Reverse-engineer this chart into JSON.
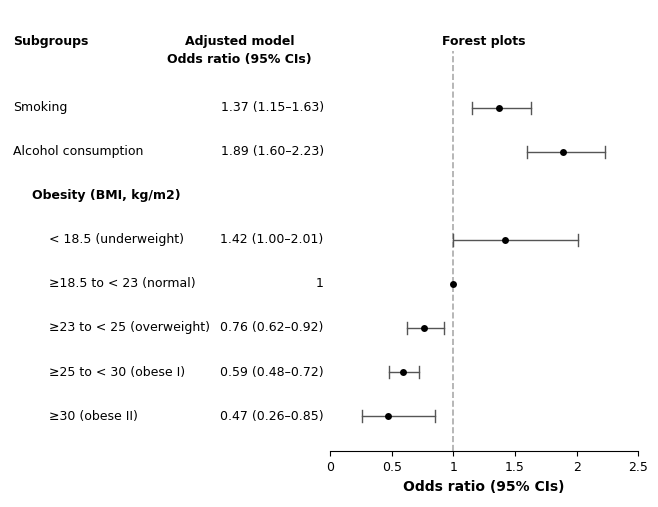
{
  "labels": [
    "Smoking",
    "Alcohol consumption",
    "Obesity (BMI, kg/m2)",
    "< 18.5 (underweight)",
    "≥18.5 to < 23 (normal)",
    "≥23 to < 25 (overweight)",
    "≥25 to < 30 (obese I)",
    "≥30 (obese II)"
  ],
  "or_labels": [
    "1.37 (1.15–1.63)",
    "1.89 (1.60–2.23)",
    "",
    "1.42 (1.00–2.01)",
    "1",
    "0.76 (0.62–0.92)",
    "0.59 (0.48–0.72)",
    "0.47 (0.26–0.85)"
  ],
  "or": [
    1.37,
    1.89,
    null,
    1.42,
    1.0,
    0.76,
    0.59,
    0.47
  ],
  "ci_low": [
    1.15,
    1.6,
    null,
    1.0,
    1.0,
    0.62,
    0.48,
    0.26
  ],
  "ci_high": [
    1.63,
    2.23,
    null,
    2.01,
    1.0,
    0.92,
    0.72,
    0.85
  ],
  "is_header": [
    false,
    false,
    true,
    false,
    false,
    false,
    false,
    false
  ],
  "is_reference": [
    false,
    false,
    false,
    false,
    true,
    false,
    false,
    false
  ],
  "indent": [
    false,
    false,
    false,
    true,
    true,
    true,
    true,
    true
  ],
  "y_positions": [
    8,
    7,
    6,
    5,
    4,
    3,
    2,
    1
  ],
  "xlim": [
    0,
    2.5
  ],
  "xticks": [
    0,
    0.5,
    1.0,
    1.5,
    2.0,
    2.5
  ],
  "xtick_labels": [
    "0",
    "0.5",
    "1",
    "1.5",
    "2",
    "2.5"
  ],
  "xlabel": "Odds ratio (95% CIs)",
  "ref_line": 1.0,
  "col_header1": "Subgroups",
  "col_header2_line1": "Adjusted model",
  "col_header2_line2": "Odds ratio (95% CIs)",
  "col_header3": "Forest plots",
  "marker_size": 5,
  "marker_color": "#000000",
  "line_color": "#555555",
  "ref_line_color": "#aaaaaa",
  "background_color": "#ffffff",
  "fontsize": 9,
  "header_fontsize": 9,
  "ylim_bottom": 0.2,
  "ylim_top": 9.3
}
